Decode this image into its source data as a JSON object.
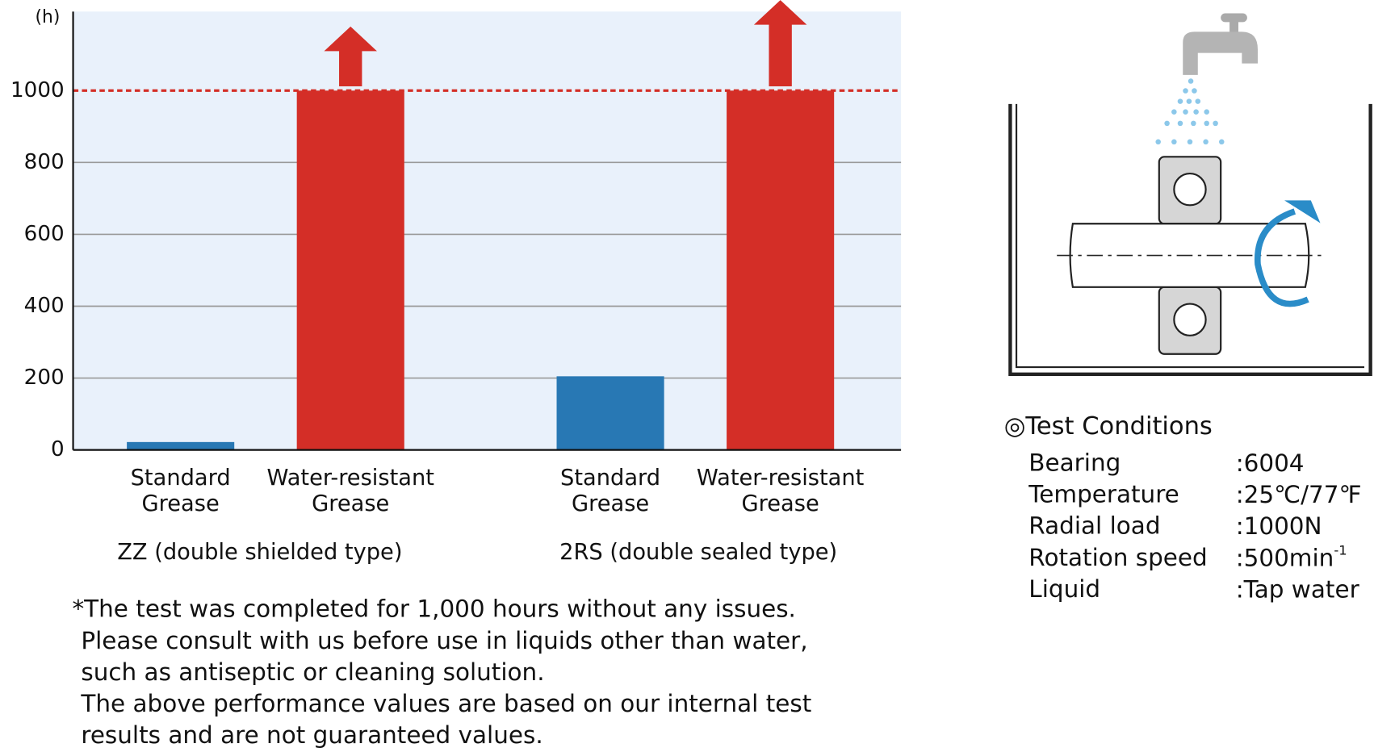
{
  "chart_data": {
    "type": "bar",
    "y_unit": "(h)",
    "categories": [
      [
        "Standard",
        "Grease"
      ],
      [
        "Water-resistant",
        "Grease"
      ],
      [
        "Standard",
        "Grease"
      ],
      [
        "Water-resistant",
        "Grease"
      ]
    ],
    "groups": [
      "ZZ (double shielded type)",
      "2RS (double sealed type)"
    ],
    "values": [
      22,
      1000,
      205,
      1000
    ],
    "colors": [
      "#2878b4",
      "#d42e27",
      "#2878b4",
      "#d42e27"
    ],
    "label_colors": [
      "#111111",
      "#c0282a",
      "#111111",
      "#c0282a"
    ],
    "ylim": [
      0,
      1220
    ],
    "yticks": [
      0,
      200,
      400,
      600,
      800,
      1000
    ],
    "grid": true,
    "notes": [
      "*The test was completed for 1,000 hours without any issues.",
      "Please consult with us before use in liquids other than water,",
      "such as antiseptic or cleaning solution.",
      "The above performance values are based on our internal test",
      "results and are not guaranteed values."
    ]
  },
  "test_conditions": {
    "title": "◎Test Conditions",
    "rows": [
      {
        "label": "Bearing",
        "value": ":6004"
      },
      {
        "label": "Temperature",
        "value": ":25℃/77℉"
      },
      {
        "label": "Radial load",
        "value": ":1000N"
      },
      {
        "label": "Rotation speed",
        "value": ":500min",
        "sup": "-1"
      },
      {
        "label": "Liquid",
        "value": ":Tap water"
      }
    ]
  }
}
